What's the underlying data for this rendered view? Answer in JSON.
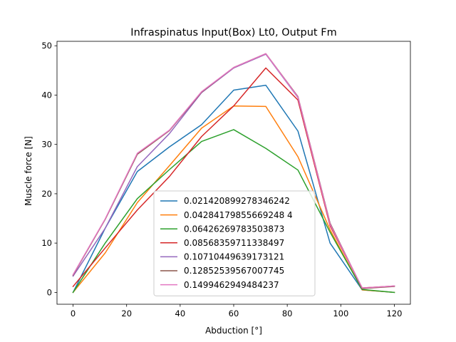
{
  "chart_data": {
    "type": "line",
    "title": "Infraspinatus Input(Box) Lt0, Output Fm",
    "xlabel": "Abduction [°]",
    "ylabel": "Muscle force [N]",
    "xlim": [
      -6,
      126
    ],
    "ylim": [
      -2.4,
      50.9
    ],
    "xticks": [
      0,
      20,
      40,
      60,
      80,
      100,
      120
    ],
    "yticks": [
      0,
      10,
      20,
      30,
      40,
      50
    ],
    "grid": false,
    "legend_position": "lower-center",
    "x": [
      0,
      12,
      24,
      36,
      48,
      60,
      72,
      84,
      96,
      108,
      120
    ],
    "series": [
      {
        "name": "0.021420899278346242",
        "color": "#1f77b4",
        "values": [
          0.0,
          13.0,
          24.5,
          29.5,
          34.0,
          41.0,
          42.0,
          32.7,
          10.0,
          0.5,
          0.0
        ]
      },
      {
        "name": "0.04284179855669248 4",
        "color": "#ff7f0e",
        "values": [
          0.0,
          8.0,
          18.2,
          25.7,
          33.3,
          37.8,
          37.7,
          27.5,
          12.7,
          0.5,
          0.0
        ]
      },
      {
        "name": "0.06426269783503873",
        "color": "#2ca02c",
        "values": [
          0.0,
          10.0,
          19.0,
          24.9,
          30.6,
          33.0,
          29.2,
          24.8,
          12.2,
          0.6,
          0.0
        ]
      },
      {
        "name": "0.08568359711338497",
        "color": "#d62728",
        "values": [
          1.2,
          9.0,
          16.7,
          23.5,
          31.6,
          37.8,
          45.5,
          39.0,
          13.5,
          0.9,
          1.3
        ]
      },
      {
        "name": "0.10710449639173121",
        "color": "#9467bd",
        "values": [
          3.3,
          13.0,
          25.5,
          32.2,
          40.5,
          45.5,
          48.3,
          39.5,
          14.0,
          0.8,
          1.3
        ]
      },
      {
        "name": "0.12852539567007745",
        "color": "#8c564b",
        "values": [
          3.5,
          14.8,
          28.0,
          32.8,
          40.6,
          45.6,
          48.4,
          39.7,
          14.0,
          0.8,
          1.2
        ]
      },
      {
        "name": "0.1499462949484237",
        "color": "#e377c2",
        "values": [
          3.6,
          14.9,
          28.2,
          32.9,
          40.7,
          45.6,
          48.4,
          39.6,
          13.8,
          0.9,
          1.3
        ]
      }
    ]
  }
}
